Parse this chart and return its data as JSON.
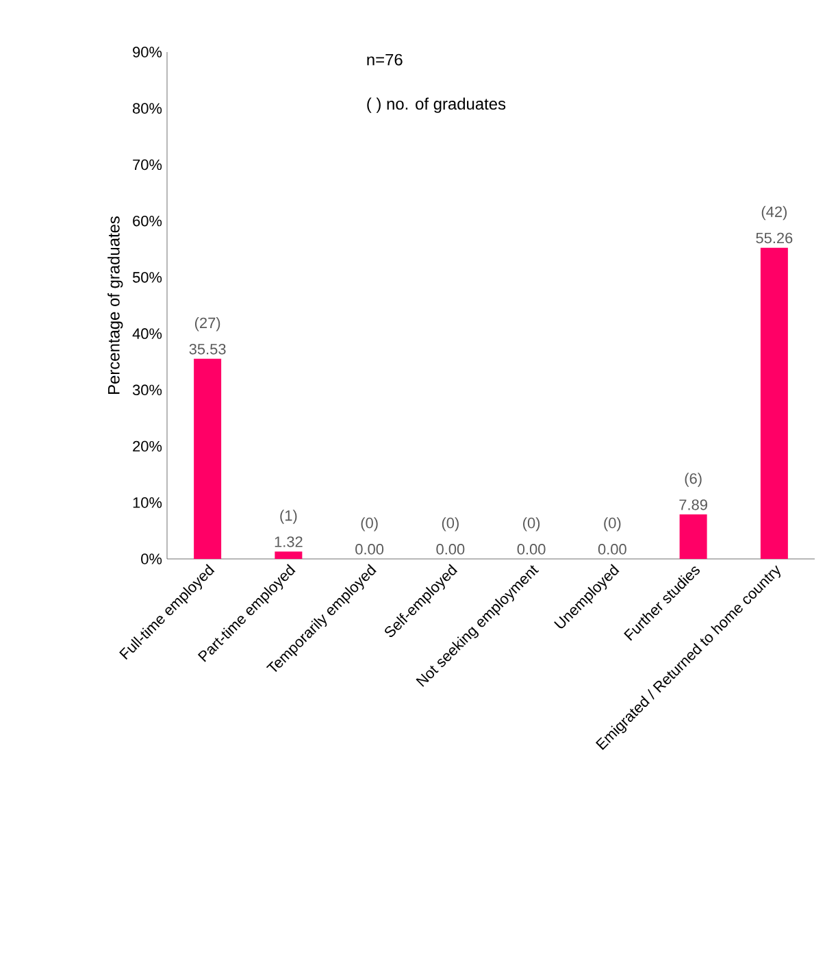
{
  "chart_data": {
    "type": "bar",
    "ylabel": "Percentage of graduates",
    "categories": [
      "Full-time employed",
      "Part-time employed",
      "Temporarily employed",
      "Self-employed",
      "Not seeking employment",
      "Unemployed",
      "Further studies",
      "Emigrated / Returned to home country"
    ],
    "values": [
      35.53,
      1.32,
      0,
      0,
      0,
      0,
      7.89,
      55.26
    ],
    "value_labels": [
      "35.53",
      "1.32",
      "0.00",
      "0.00",
      "0.00",
      "0.00",
      "7.89",
      "55.26"
    ],
    "color": "#ff0066",
    "ylim": [
      0,
      90
    ],
    "yticks": [
      {
        "value": 0,
        "label": "0%"
      },
      {
        "value": 10,
        "label": "10%"
      },
      {
        "value": 20,
        "label": "20%"
      },
      {
        "value": 30,
        "label": "30%"
      },
      {
        "value": 40,
        "label": "40%"
      },
      {
        "value": 50,
        "label": "50%"
      },
      {
        "value": 60,
        "label": "60%"
      },
      {
        "value": 70,
        "label": "70%"
      },
      {
        "value": 80,
        "label": "80%"
      },
      {
        "value": 90,
        "label": "90%"
      }
    ],
    "annotations": [
      "n=76",
      "( ) no. of graduates",
      {
        "text": "(27)",
        "x": "Full-time employed",
        "y": 35.53
      },
      {
        "text": "(1)",
        "x": "Part-time employed",
        "y": 1.32
      },
      {
        "text": "(0)",
        "x": "Temporarily employed",
        "y": 0
      },
      {
        "text": "(0)",
        "x": "Self-employed",
        "y": 0
      },
      {
        "text": "(0)",
        "x": "Not seeking employment",
        "y": 0
      },
      {
        "text": "(0)",
        "x": "Unemployed",
        "y": 0
      },
      {
        "text": "(6)",
        "x": "Further studies",
        "y": 7.89
      },
      {
        "text": "(42)",
        "x": "Emigrated / Returned to home country",
        "y": 55.26
      }
    ],
    "grid": false,
    "legend": false
  }
}
